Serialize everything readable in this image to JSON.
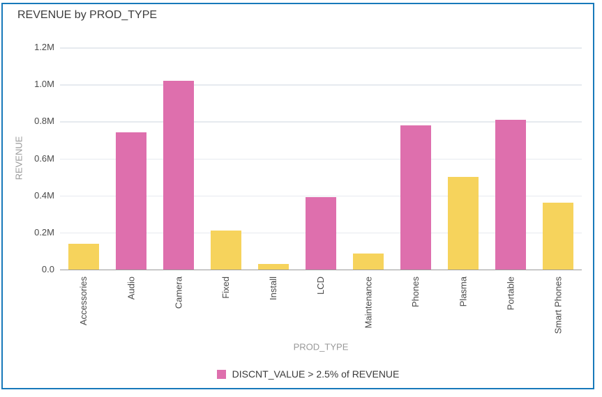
{
  "title": "REVENUE by PROD_TYPE",
  "chart_data": {
    "type": "bar",
    "title": "REVENUE by PROD_TYPE",
    "xlabel": "PROD_TYPE",
    "ylabel": "REVENUE",
    "categories": [
      "Accessories",
      "Audio",
      "Camera",
      "Fixed",
      "Install",
      "LCD",
      "Maintenance",
      "Phones",
      "Plasma",
      "Portable",
      "Smart Phones"
    ],
    "series": [
      {
        "name": "REVENUE",
        "values": [
          140000,
          740000,
          1020000,
          210000,
          30000,
          390000,
          85000,
          780000,
          500000,
          810000,
          360000
        ]
      }
    ],
    "highlight_rule": "DISCNT_VALUE > 2.5% of REVENUE",
    "highlighted": [
      false,
      true,
      true,
      false,
      false,
      true,
      false,
      true,
      false,
      true,
      false
    ],
    "ylim": [
      0,
      1200000
    ],
    "y_ticks": [
      {
        "value": 0,
        "label": "0.0"
      },
      {
        "value": 200000,
        "label": "0.2M"
      },
      {
        "value": 400000,
        "label": "0.4M"
      },
      {
        "value": 600000,
        "label": "0.6M"
      },
      {
        "value": 800000,
        "label": "0.8M"
      },
      {
        "value": 1000000,
        "label": "1.0M"
      },
      {
        "value": 1200000,
        "label": "1.2M"
      }
    ],
    "grid": true,
    "legend": {
      "position": "bottom",
      "entries": [
        {
          "label": "DISCNT_VALUE > 2.5% of REVENUE",
          "color": "#DE6FAD"
        }
      ]
    },
    "colors": {
      "highlight": "#DE6FAD",
      "default": "#F6D35C",
      "gridline": "#E6EAEF",
      "axis_line": "#9B9B9B",
      "tick_label": "#4A4A4A",
      "axis_title": "#999999",
      "title": "#3C3C3C",
      "frame_border": "#1779BA"
    }
  }
}
